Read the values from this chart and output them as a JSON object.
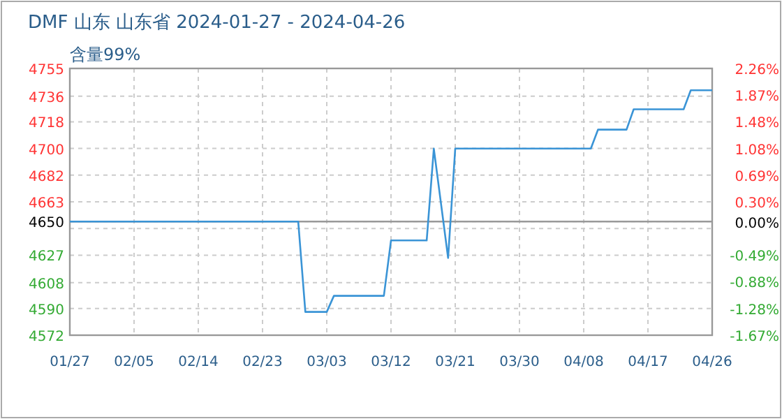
{
  "chart_data": {
    "type": "line",
    "title": "DMF 山东 山东省 2024-01-27 - 2024-04-26",
    "subtitle": "含量99%",
    "series": [
      {
        "color": "#3a94d6",
        "x": [
          "2024-01-27",
          "2024-02-28",
          "2024-02-29",
          "2024-03-03",
          "2024-03-04",
          "2024-03-11",
          "2024-03-12",
          "2024-03-17",
          "2024-03-18",
          "2024-03-20",
          "2024-03-21",
          "2024-04-09",
          "2024-04-10",
          "2024-04-14",
          "2024-04-15",
          "2024-04-22",
          "2024-04-23",
          "2024-04-26"
        ],
        "values": [
          4650,
          4650,
          4588,
          4588,
          4599,
          4599,
          4637,
          4637,
          4700,
          4625,
          4700,
          4700,
          4713,
          4713,
          4727,
          4727,
          4740,
          4740
        ]
      }
    ],
    "xlim": [
      "2024-01-27",
      "2024-04-26"
    ],
    "xticks": [
      {
        "value": "2024-01-27",
        "label": "01/27"
      },
      {
        "value": "2024-02-05",
        "label": "02/05"
      },
      {
        "value": "2024-02-14",
        "label": "02/14"
      },
      {
        "value": "2024-02-23",
        "label": "02/23"
      },
      {
        "value": "2024-03-03",
        "label": "03/03"
      },
      {
        "value": "2024-03-12",
        "label": "03/12"
      },
      {
        "value": "2024-03-21",
        "label": "03/21"
      },
      {
        "value": "2024-03-30",
        "label": "03/30"
      },
      {
        "value": "2024-04-08",
        "label": "04/08"
      },
      {
        "value": "2024-04-17",
        "label": "04/17"
      },
      {
        "value": "2024-04-26",
        "label": "04/26"
      }
    ],
    "ylim": [
      4572,
      4755
    ],
    "yticks": [
      4755,
      {
        "value": 4736,
        "label": "4736"
      },
      {
        "value": 4718.4,
        "label": "4718"
      },
      {
        "value": 4700.1,
        "label": "4700"
      },
      {
        "value": 4681.8,
        "label": "4682"
      },
      {
        "value": 4663.5,
        "label": "4663"
      },
      {
        "value": 4645.2,
        "label": null
      },
      {
        "value": 4626.9,
        "label": "4627"
      },
      {
        "value": 4608,
        "label": "4608"
      },
      {
        "value": 4590.3,
        "label": "4590"
      },
      4572,
      {
        "value": 4650,
        "label": "4650"
      }
    ],
    "y2lim": [
      -1.67,
      2.26
    ],
    "y2ticks": [
      {
        "value": 2.26,
        "label": "2.26%"
      },
      {
        "value": 1.87,
        "label": "1.87%"
      },
      {
        "value": 1.48,
        "label": "1.48%"
      },
      {
        "value": 1.08,
        "label": "1.08%"
      },
      {
        "value": 0.69,
        "label": "0.69%"
      },
      {
        "value": 0.3,
        "label": "0.30%"
      },
      {
        "value": 0,
        "label": "0.00%"
      },
      {
        "value": -0.49,
        "label": "-0.49%"
      },
      {
        "value": -0.88,
        "label": "-0.88%"
      },
      {
        "value": -1.28,
        "label": "-1.28%"
      },
      {
        "value": -1.67,
        "label": "-1.67%"
      }
    ],
    "ref_lines": [
      {
        "axis": "y",
        "value": 4650,
        "color": "#999999"
      }
    ],
    "grid": true
  }
}
